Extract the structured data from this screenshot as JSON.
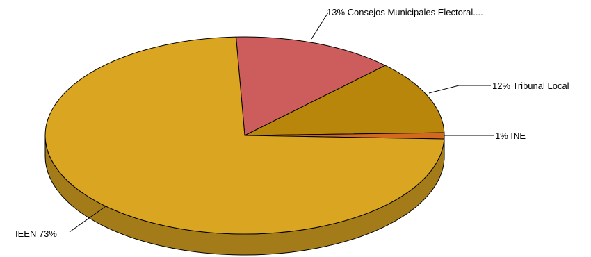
{
  "chart_data": {
    "type": "pie",
    "title": "",
    "slices": [
      {
        "name": "Consejos Municipales Electoral....",
        "percent": 13,
        "label": "13% Consejos Municipales Electoral....",
        "color": "#CD5C5C",
        "side": "#8F3F3F"
      },
      {
        "name": "Tribunal Local",
        "percent": 12,
        "label": "12% Tribunal Local",
        "color": "#B8860B",
        "side": "#7E5C08"
      },
      {
        "name": "INE",
        "percent": 1,
        "label": "1% INE",
        "color": "#D2691E",
        "side": "#93491A"
      },
      {
        "name": "IEEN",
        "percent": 73,
        "label": "IEEN 73%",
        "color": "#DAA520",
        "side": "#A37B18"
      }
    ]
  }
}
